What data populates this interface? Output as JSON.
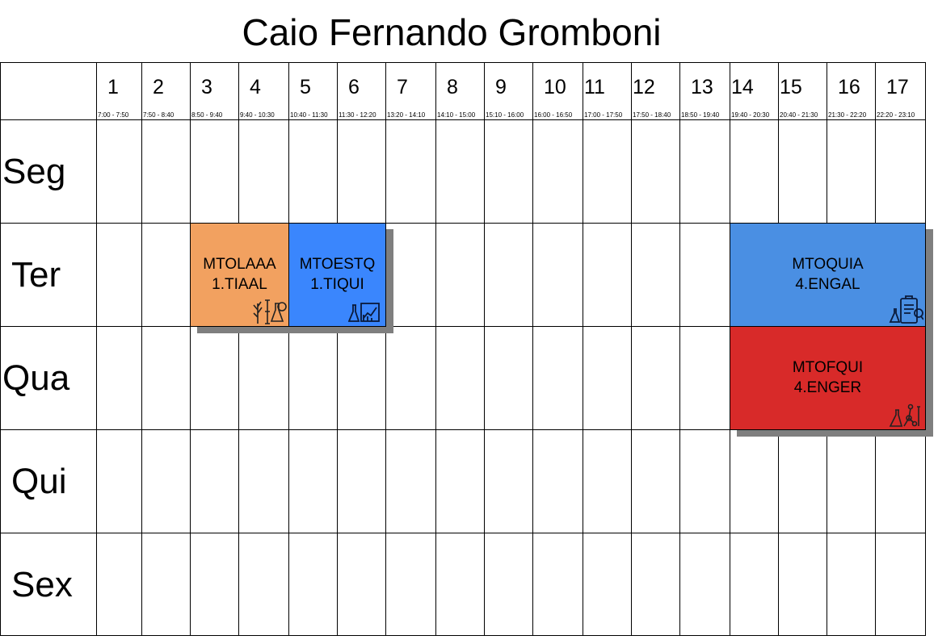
{
  "title": "Caio Fernando Gromboni",
  "slots": [
    {
      "num": "1",
      "time": "7:00 - 7:50"
    },
    {
      "num": "2",
      "time": "7:50 - 8:40"
    },
    {
      "num": "3",
      "time": "8:50 - 9:40"
    },
    {
      "num": "4",
      "time": "9:40 - 10:30"
    },
    {
      "num": "5",
      "time": "10:40 - 11:30"
    },
    {
      "num": "6",
      "time": "11:30 - 12:20"
    },
    {
      "num": "7",
      "time": "13:20 - 14:10"
    },
    {
      "num": "8",
      "time": "14:10 - 15:00"
    },
    {
      "num": "9",
      "time": "15:10 - 16:00"
    },
    {
      "num": "10",
      "time": "16:00 - 16:50"
    },
    {
      "num": "11",
      "time": "17:00 - 17:50"
    },
    {
      "num": "12",
      "time": "17:50 - 18:40"
    },
    {
      "num": "13",
      "time": "18:50 - 19:40"
    },
    {
      "num": "14",
      "time": "19:40 - 20:30"
    },
    {
      "num": "15",
      "time": "20:40 - 21:30"
    },
    {
      "num": "16",
      "time": "21:30 - 22:20"
    },
    {
      "num": "17",
      "time": "22:20 - 23:10"
    }
  ],
  "days": [
    "Seg",
    "Ter",
    "Qua",
    "Qui",
    "Sex"
  ],
  "classes": [
    {
      "code": "MTOLAAA",
      "group": "1.TIAAL",
      "day": "Ter",
      "slots": "3-4",
      "color": "#f2a160",
      "icon": "plants-lab-icon"
    },
    {
      "code": "MTOESTQ",
      "group": "1.TIQUI",
      "day": "Ter",
      "slots": "5-6",
      "color": "#3a86fd",
      "icon": "chemistry-chart-icon"
    },
    {
      "code": "MTOQUIA",
      "group": "4.ENGAL",
      "day": "Ter",
      "slots": "14-17",
      "color": "#4a8fe3",
      "icon": "lab-report-icon"
    },
    {
      "code": "MTOFQUI",
      "group": "4.ENGER",
      "day": "Qua",
      "slots": "14-17",
      "color": "#d82a29",
      "icon": "molecule-flask-icon"
    }
  ]
}
